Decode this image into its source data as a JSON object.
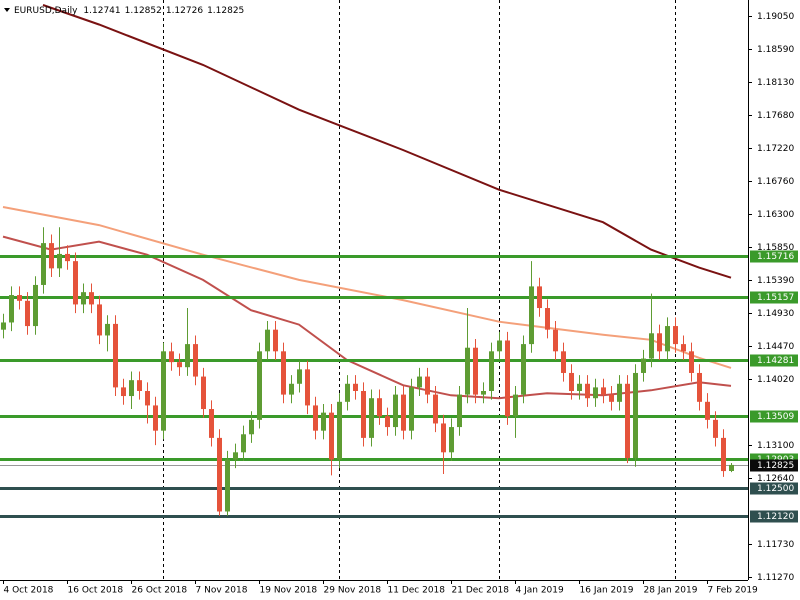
{
  "chart_data": {
    "type": "candlestick",
    "header": {
      "symbol": "EURUSD,Daily",
      "ohlc": [
        1.12741,
        1.12852,
        1.12726,
        1.12825
      ]
    },
    "xlim": [
      -0.375,
      93.125
    ],
    "xticks": [
      {
        "value": 0,
        "label": "4 Oct 2018"
      },
      {
        "value": 8,
        "label": "16 Oct 2018"
      },
      {
        "value": 16,
        "label": "26 Oct 2018"
      },
      {
        "value": 24,
        "label": "7 Nov 2018"
      },
      {
        "value": 32,
        "label": "19 Nov 2018"
      },
      {
        "value": 40,
        "label": "29 Nov 2018"
      },
      {
        "value": 48,
        "label": "11 Dec 2018"
      },
      {
        "value": 56,
        "label": "21 Dec 2018"
      },
      {
        "value": 64,
        "label": "4 Jan 2019"
      },
      {
        "value": 72,
        "label": "16 Jan 2019"
      },
      {
        "value": 80,
        "label": "28 Jan 2019"
      },
      {
        "value": 88,
        "label": "7 Feb 2019"
      }
    ],
    "period_separators": [
      20,
      42,
      62,
      84
    ],
    "ylim": [
      1.1123,
      1.1927
    ],
    "yticks": [
      {
        "value": 1.1905,
        "label": "1.19050"
      },
      {
        "value": 1.1859,
        "label": "1.18590"
      },
      {
        "value": 1.1813,
        "label": "1.18130"
      },
      {
        "value": 1.1768,
        "label": "1.17680"
      },
      {
        "value": 1.1722,
        "label": "1.17220"
      },
      {
        "value": 1.1676,
        "label": "1.16760"
      },
      {
        "value": 1.163,
        "label": "1.16300"
      },
      {
        "value": 1.1585,
        "label": "1.15850"
      },
      {
        "value": 1.1539,
        "label": "1.15390"
      },
      {
        "value": 1.1493,
        "label": "1.14930"
      },
      {
        "value": 1.1447,
        "label": "1.14470"
      },
      {
        "value": 1.1402,
        "label": "1.14020"
      },
      {
        "value": 1.131,
        "label": "1.13100"
      },
      {
        "value": 1.1264,
        "label": "1.12640"
      },
      {
        "value": 1.1173,
        "label": "1.11730"
      },
      {
        "value": 1.1127,
        "label": "1.11270"
      }
    ],
    "up_color": "#5e9c33",
    "down_color": "#e5533b",
    "open": [
      1.147,
      1.148,
      1.1518,
      1.151,
      1.1475,
      1.1532,
      1.159,
      1.1555,
      1.1575,
      1.1565,
      1.1505,
      1.1522,
      1.1505,
      1.1462,
      1.1478,
      1.139,
      1.1378,
      1.14,
      1.1385,
      1.1365,
      1.133,
      1.144,
      1.1425,
      1.1418,
      1.145,
      1.1405,
      1.136,
      1.132,
      1.1218,
      1.129,
      1.13,
      1.1325,
      1.1345,
      1.144,
      1.147,
      1.144,
      1.138,
      1.1395,
      1.1415,
      1.1365,
      1.133,
      1.1355,
      1.129,
      1.137,
      1.1395,
      1.1385,
      1.132,
      1.1375,
      1.135,
      1.1335,
      1.138,
      1.133,
      1.139,
      1.1405,
      1.138,
      1.134,
      1.13,
      1.1335,
      1.138,
      1.1445,
      1.138,
      1.1385,
      1.144,
      1.1455,
      1.135,
      1.138,
      1.145,
      1.153,
      1.15,
      1.147,
      1.144,
      1.141,
      1.1385,
      1.1395,
      1.1375,
      1.139,
      1.138,
      1.137,
      1.1395,
      1.1292,
      1.141,
      1.143,
      1.1465,
      1.144,
      1.1475,
      1.145,
      1.144,
      1.141,
      1.137,
      1.1345,
      1.132,
      1.12741
    ],
    "high": [
      1.1492,
      1.153,
      1.153,
      1.1522,
      1.1544,
      1.1612,
      1.1602,
      1.1612,
      1.1587,
      1.1577,
      1.1534,
      1.1534,
      1.1517,
      1.149,
      1.149,
      1.1402,
      1.1412,
      1.1412,
      1.1397,
      1.1377,
      1.1452,
      1.1452,
      1.1437,
      1.15,
      1.1462,
      1.1417,
      1.1372,
      1.1332,
      1.1302,
      1.1312,
      1.1337,
      1.1357,
      1.1452,
      1.1482,
      1.1482,
      1.1452,
      1.1407,
      1.1427,
      1.1427,
      1.1377,
      1.1367,
      1.1367,
      1.1382,
      1.1407,
      1.1407,
      1.1397,
      1.1387,
      1.1387,
      1.1362,
      1.1392,
      1.1392,
      1.1402,
      1.1417,
      1.1417,
      1.1392,
      1.1352,
      1.1347,
      1.1392,
      1.15,
      1.1457,
      1.1397,
      1.1452,
      1.1467,
      1.1467,
      1.1392,
      1.1462,
      1.1565,
      1.1542,
      1.1512,
      1.1482,
      1.1452,
      1.1422,
      1.1407,
      1.1407,
      1.1402,
      1.1402,
      1.1392,
      1.1407,
      1.1407,
      1.1422,
      1.1442,
      1.152,
      1.1477,
      1.1487,
      1.1487,
      1.1462,
      1.1452,
      1.1422,
      1.1382,
      1.1357,
      1.1332,
      1.12852
    ],
    "low": [
      1.1458,
      1.1468,
      1.1498,
      1.1463,
      1.1463,
      1.152,
      1.1543,
      1.1543,
      1.1553,
      1.1493,
      1.1493,
      1.1493,
      1.145,
      1.144,
      1.1378,
      1.1366,
      1.136,
      1.1373,
      1.134,
      1.131,
      1.1318,
      1.1413,
      1.1406,
      1.1406,
      1.1393,
      1.1348,
      1.1308,
      1.1212,
      1.1212,
      1.1278,
      1.1288,
      1.1313,
      1.1333,
      1.1428,
      1.1428,
      1.1368,
      1.1368,
      1.1383,
      1.1353,
      1.1318,
      1.1318,
      1.1268,
      1.1278,
      1.1358,
      1.1373,
      1.1308,
      1.1308,
      1.1338,
      1.1323,
      1.1323,
      1.1318,
      1.1318,
      1.1378,
      1.1368,
      1.1328,
      1.127,
      1.1288,
      1.1323,
      1.1368,
      1.1368,
      1.1368,
      1.1373,
      1.1428,
      1.1338,
      1.132,
      1.1368,
      1.1438,
      1.1488,
      1.1458,
      1.1428,
      1.1398,
      1.1373,
      1.1373,
      1.1363,
      1.1363,
      1.1368,
      1.1358,
      1.1358,
      1.1285,
      1.128,
      1.1398,
      1.1418,
      1.1428,
      1.1428,
      1.1438,
      1.1428,
      1.1398,
      1.1358,
      1.1333,
      1.1308,
      1.1266,
      1.12726
    ],
    "close": [
      1.148,
      1.1518,
      1.151,
      1.1475,
      1.1532,
      1.159,
      1.1555,
      1.1575,
      1.1565,
      1.1505,
      1.1522,
      1.1505,
      1.1462,
      1.1478,
      1.139,
      1.1378,
      1.14,
      1.1385,
      1.1365,
      1.133,
      1.144,
      1.1425,
      1.1418,
      1.145,
      1.1405,
      1.136,
      1.132,
      1.1218,
      1.129,
      1.13,
      1.1325,
      1.1345,
      1.144,
      1.147,
      1.144,
      1.138,
      1.1395,
      1.1415,
      1.1365,
      1.133,
      1.1355,
      1.129,
      1.137,
      1.1395,
      1.1385,
      1.132,
      1.1375,
      1.135,
      1.1335,
      1.138,
      1.133,
      1.139,
      1.1405,
      1.138,
      1.134,
      1.13,
      1.1335,
      1.138,
      1.1445,
      1.138,
      1.1385,
      1.144,
      1.1455,
      1.135,
      1.138,
      1.145,
      1.153,
      1.15,
      1.147,
      1.144,
      1.141,
      1.1385,
      1.1395,
      1.1375,
      1.139,
      1.138,
      1.137,
      1.1395,
      1.1292,
      1.141,
      1.143,
      1.1465,
      1.144,
      1.1475,
      1.145,
      1.144,
      1.141,
      1.137,
      1.1345,
      1.132,
      1.1274,
      1.12825
    ],
    "moving_averages": [
      {
        "color": "#7a1212",
        "x": [
          5,
          12,
          25,
          37,
          50,
          62,
          75,
          81,
          87,
          91
        ],
        "values": [
          1.192,
          1.1893,
          1.1837,
          1.1775,
          1.1719,
          1.1664,
          1.1619,
          1.1581,
          1.1556,
          1.1542
        ]
      },
      {
        "color": "#f4a07a",
        "x": [
          0,
          12,
          25,
          37,
          50,
          62,
          75,
          81,
          87,
          91
        ],
        "values": [
          1.164,
          1.1615,
          1.1574,
          1.1539,
          1.1511,
          1.1481,
          1.1463,
          1.1456,
          1.1431,
          1.1417
        ]
      },
      {
        "color": "#c0504d",
        "x": [
          0,
          6,
          12,
          18,
          25,
          31,
          37,
          43,
          50,
          56,
          62,
          68,
          75,
          81,
          87,
          91
        ],
        "values": [
          1.1599,
          1.1581,
          1.1592,
          1.1574,
          1.1539,
          1.1497,
          1.1477,
          1.1428,
          1.1393,
          1.1379,
          1.1375,
          1.1382,
          1.1379,
          1.1386,
          1.1397,
          1.1392
        ]
      }
    ],
    "levels": [
      {
        "value": 1.15716,
        "color": "#3a9a2a"
      },
      {
        "value": 1.15157,
        "color": "#3a9a2a"
      },
      {
        "value": 1.14281,
        "color": "#3a9a2a"
      },
      {
        "value": 1.13509,
        "color": "#3a9a2a"
      },
      {
        "value": 1.12903,
        "color": "#3a9a2a"
      },
      {
        "value": {
          "value": 1.125,
          "label": "1.12500"
        },
        "color": "#2f4f4f"
      },
      {
        "value": {
          "value": 1.1212,
          "label": "1.12120"
        },
        "color": "#2f4f4f"
      }
    ],
    "current_price": 1.12825
  }
}
